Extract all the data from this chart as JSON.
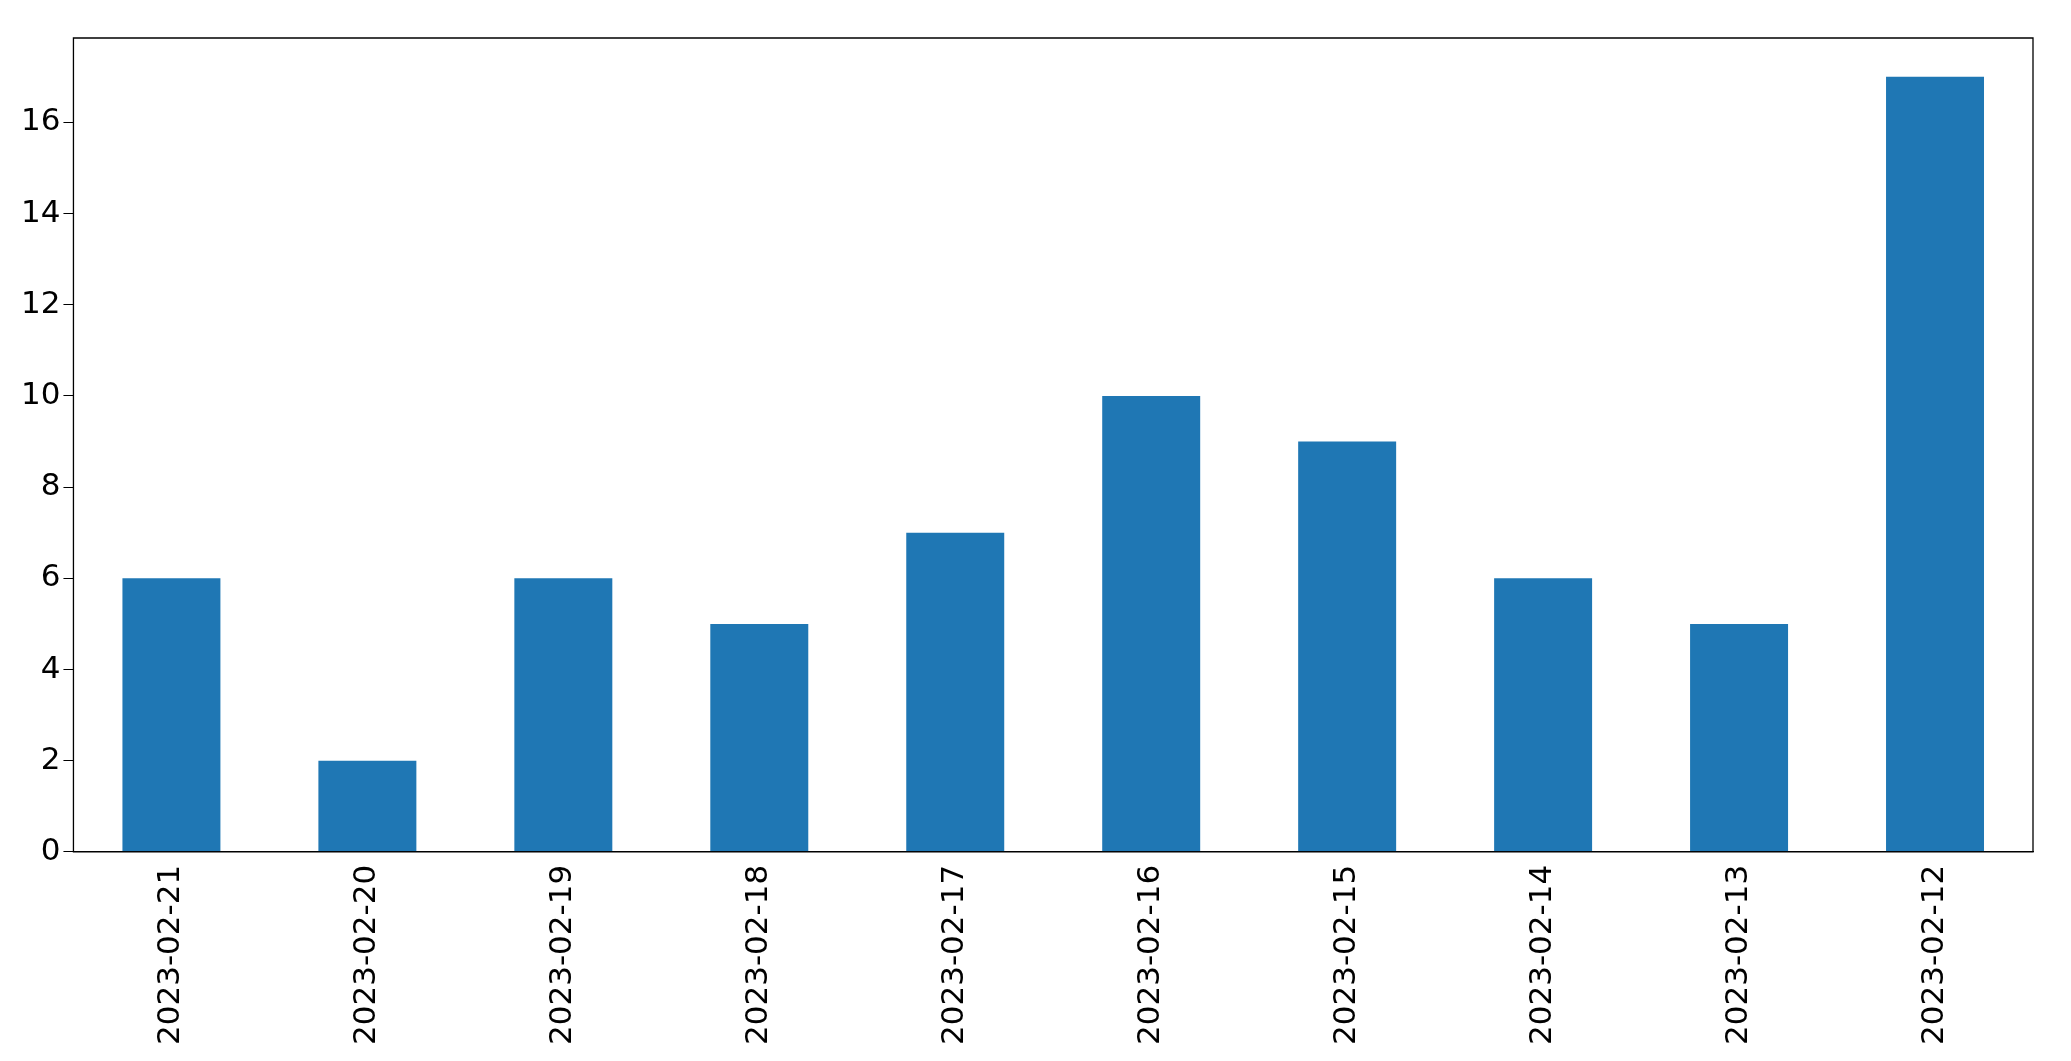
{
  "chart_data": {
    "type": "bar",
    "categories": [
      "2023-02-21",
      "2023-02-20",
      "2023-02-19",
      "2023-02-18",
      "2023-02-17",
      "2023-02-16",
      "2023-02-15",
      "2023-02-14",
      "2023-02-13",
      "2023-02-12"
    ],
    "values": [
      6,
      2,
      6,
      5,
      7,
      10,
      9,
      6,
      5,
      17
    ],
    "color": "#1f77b4",
    "ylim": [
      0,
      17.85
    ],
    "yticks": [
      0,
      2,
      4,
      6,
      8,
      10,
      12,
      14,
      16
    ],
    "grid": false,
    "legend": false
  }
}
